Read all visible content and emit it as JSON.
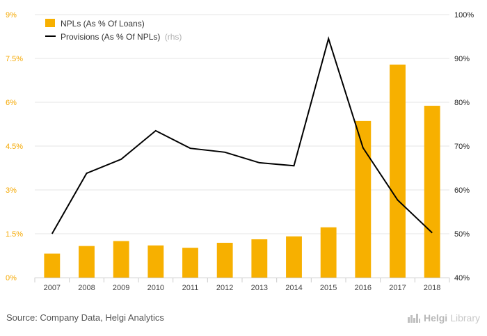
{
  "chart_data": {
    "type": "bar+line",
    "categories": [
      "2007",
      "2008",
      "2009",
      "2010",
      "2011",
      "2012",
      "2013",
      "2014",
      "2015",
      "2016",
      "2017",
      "2018"
    ],
    "series": [
      {
        "name": "NPLs (As % Of Loans)",
        "axis": "left",
        "type": "bar",
        "color": "#f7b000",
        "values": [
          0.82,
          1.08,
          1.25,
          1.1,
          1.02,
          1.19,
          1.31,
          1.41,
          1.72,
          5.36,
          7.29,
          5.88
        ]
      },
      {
        "name": "Provisions (As % Of NPLs)",
        "axis": "right",
        "type": "line",
        "color": "#000000",
        "values": [
          50.0,
          63.8,
          67.0,
          73.5,
          69.5,
          68.6,
          66.2,
          65.5,
          94.5,
          69.6,
          57.7,
          50.2
        ]
      }
    ],
    "legend": [
      {
        "label": "NPLs (As % Of Loans)",
        "note": ""
      },
      {
        "label": "Provisions (As % Of NPLs)",
        "note": "(rhs)"
      }
    ],
    "left_axis": {
      "ylim": [
        0,
        9
      ],
      "ticks": [
        0,
        1.5,
        3,
        4.5,
        6,
        7.5,
        9
      ],
      "labels": [
        "0%",
        "1.5%",
        "3%",
        "4.5%",
        "6%",
        "7.5%",
        "9%"
      ]
    },
    "right_axis": {
      "ylim": [
        40,
        100
      ],
      "ticks": [
        40,
        50,
        60,
        70,
        80,
        90,
        100
      ],
      "labels": [
        "40%",
        "50%",
        "60%",
        "70%",
        "80%",
        "90%",
        "100%"
      ]
    },
    "grid": true,
    "legend_position": "top-left"
  },
  "footer": {
    "source": "Source: Company Data, Helgi Analytics",
    "brand_part1": "Helgi",
    "brand_part2": "Library",
    "brand_icon": "helgi-skyline-icon"
  }
}
